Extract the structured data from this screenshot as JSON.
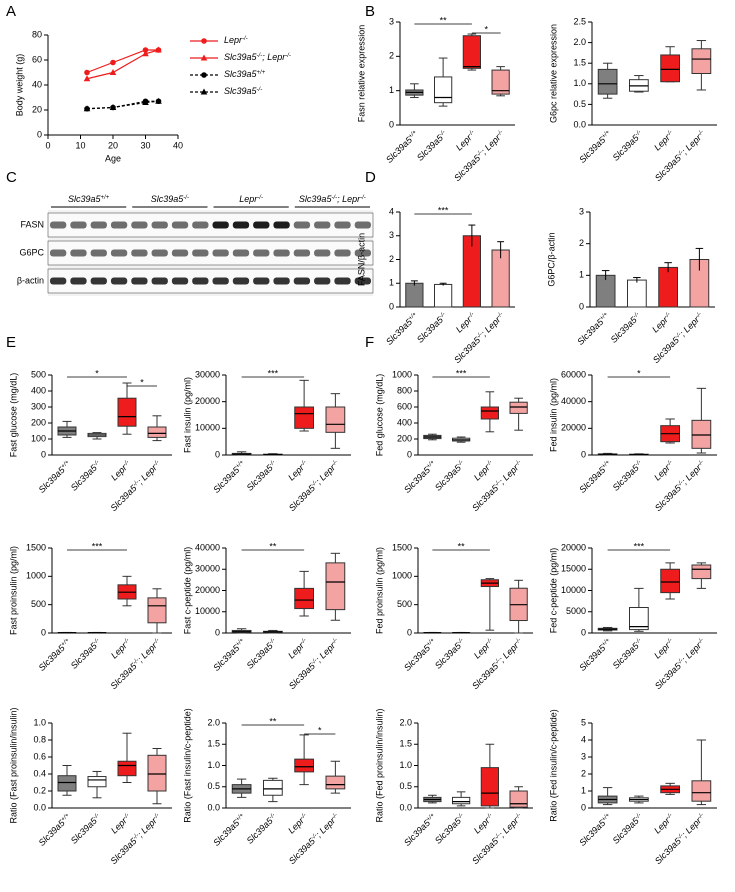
{
  "panel_labels": [
    "A",
    "B",
    "C",
    "D",
    "E",
    "F"
  ],
  "blot": {
    "groups": [
      "Slc39a5+/+",
      "Slc39a5-/-",
      "Lepr-/-",
      "Slc39a5-/-; Lepr-/-"
    ],
    "rows": [
      "FASN",
      "G6PC",
      "β-actin"
    ]
  },
  "chart_data": [
    {
      "type": "line",
      "xlabel": "Age",
      "ylabel": "Body weight (g)",
      "x": [
        12,
        20,
        30,
        34
      ],
      "xlim": [
        0,
        40
      ],
      "xticks": [
        0,
        10,
        20,
        30,
        40
      ],
      "ylim": [
        0,
        80
      ],
      "yticks": [
        0,
        20,
        40,
        60,
        80
      ],
      "legend": "right",
      "series": [
        {
          "name": "Lepr-/-",
          "color": "#ee1c1c",
          "marker": "circle",
          "dashed": false,
          "values": [
            50,
            58,
            68,
            68
          ]
        },
        {
          "name": "Slc39a5-/-; Lepr-/-",
          "color": "#ee1c1c",
          "marker": "triangle",
          "dashed": false,
          "values": [
            45,
            50,
            65,
            68
          ]
        },
        {
          "name": "Slc39a5+/+",
          "color": "#000000",
          "marker": "circle",
          "dashed": true,
          "values": [
            21,
            22,
            27,
            27
          ]
        },
        {
          "name": "Slc39a5-/-",
          "color": "#000000",
          "marker": "triangle",
          "dashed": true,
          "values": [
            21,
            22,
            26,
            27
          ]
        }
      ]
    },
    {
      "type": "box",
      "ylabel": "Fasn relative expression",
      "categories": [
        "Slc39a5+/+",
        "Slc39a5-/-",
        "Lepr-/-",
        "Slc39a5-/-; Lepr-/-"
      ],
      "colors": [
        "#7f7f7f",
        "#ffffff",
        "#ee1c1c",
        "#f4a3a3"
      ],
      "ylim": [
        0,
        3
      ],
      "yticks": [
        0,
        1,
        2,
        3
      ],
      "boxes": [
        {
          "min": 0.8,
          "q1": 0.87,
          "median": 0.95,
          "q3": 1.02,
          "max": 1.2
        },
        {
          "min": 0.55,
          "q1": 0.65,
          "median": 0.8,
          "q3": 1.4,
          "max": 1.95
        },
        {
          "min": 1.6,
          "q1": 1.65,
          "median": 1.7,
          "q3": 2.6,
          "max": 2.65
        },
        {
          "min": 0.85,
          "q1": 0.9,
          "median": 1.0,
          "q3": 1.6,
          "max": 1.7
        }
      ],
      "significance": [
        {
          "groups": [
            "Slc39a5+/+",
            "Lepr-/-"
          ],
          "label": "**"
        },
        {
          "groups": [
            "Lepr-/-",
            "Slc39a5-/-; Lepr-/-"
          ],
          "label": "*"
        }
      ]
    },
    {
      "type": "box",
      "ylabel": "G6pc relative expression",
      "categories": [
        "Slc39a5+/+",
        "Slc39a5-/-",
        "Lepr-/-",
        "Slc39a5-/-; Lepr-/-"
      ],
      "colors": [
        "#7f7f7f",
        "#ffffff",
        "#ee1c1c",
        "#f4a3a3"
      ],
      "ylim": [
        0,
        2.5
      ],
      "yticks": [
        {
          "value": 0,
          "label": "0.0"
        },
        0.5,
        {
          "value": 1,
          "label": "1.0"
        },
        1.5,
        {
          "value": 2,
          "label": "2.0"
        },
        2.5
      ],
      "boxes": [
        {
          "min": 0.65,
          "q1": 0.75,
          "median": 1.0,
          "q3": 1.35,
          "max": 1.5
        },
        {
          "min": 0.8,
          "q1": 0.82,
          "median": 0.95,
          "q3": 1.1,
          "max": 1.2
        },
        {
          "min": 1.05,
          "q1": 1.05,
          "median": 1.35,
          "q3": 1.7,
          "max": 1.9
        },
        {
          "min": 0.85,
          "q1": 1.25,
          "median": 1.6,
          "q3": 1.85,
          "max": 2.05
        }
      ]
    },
    {
      "type": "bar",
      "ylabel": "FASN/β-actin",
      "categories": [
        "Slc39a5+/+",
        "Slc39a5-/-",
        "Lepr-/-",
        "Slc39a5-/-; Lepr-/-"
      ],
      "colors": [
        "#7f7f7f",
        "#ffffff",
        "#ee1c1c",
        "#f4a3a3"
      ],
      "ylim": [
        0,
        4
      ],
      "yticks": [
        0,
        1,
        2,
        3,
        4
      ],
      "values": [
        1.0,
        0.95,
        3.0,
        2.4
      ],
      "errors": [
        0.1,
        0.05,
        0.45,
        0.35
      ],
      "significance": [
        {
          "groups": [
            "Slc39a5+/+",
            "Lepr-/-"
          ],
          "label": "***"
        }
      ]
    },
    {
      "type": "bar",
      "ylabel": "G6PC/β-actin",
      "categories": [
        "Slc39a5+/+",
        "Slc39a5-/-",
        "Lepr-/-",
        "Slc39a5-/-; Lepr-/-"
      ],
      "colors": [
        "#7f7f7f",
        "#ffffff",
        "#ee1c1c",
        "#f4a3a3"
      ],
      "ylim": [
        0,
        3
      ],
      "yticks": [
        0,
        1,
        2,
        3
      ],
      "values": [
        1.0,
        0.85,
        1.25,
        1.5
      ],
      "errors": [
        0.15,
        0.08,
        0.15,
        0.35
      ]
    },
    {
      "type": "box",
      "ylabel": "Fast glucose (mg/dL)",
      "categories": [
        "Slc39a5+/+",
        "Slc39a5-/-",
        "Lepr-/-",
        "Slc39a5-/-; Lepr-/-"
      ],
      "colors": [
        "#7f7f7f",
        "#ffffff",
        "#ee1c1c",
        "#f4a3a3"
      ],
      "ylim": [
        0,
        500
      ],
      "yticks": [
        0,
        100,
        200,
        300,
        400,
        500
      ],
      "boxes": [
        {
          "min": 110,
          "q1": 125,
          "median": 150,
          "q3": 175,
          "max": 210
        },
        {
          "min": 100,
          "q1": 115,
          "median": 125,
          "q3": 135,
          "max": 140
        },
        {
          "min": 130,
          "q1": 180,
          "median": 240,
          "q3": 355,
          "max": 450
        },
        {
          "min": 90,
          "q1": 110,
          "median": 135,
          "q3": 175,
          "max": 245
        }
      ],
      "significance": [
        {
          "groups": [
            "Slc39a5+/+",
            "Lepr-/-"
          ],
          "label": "*"
        },
        {
          "groups": [
            "Lepr-/-",
            "Slc39a5-/-; Lepr-/-"
          ],
          "label": "*"
        }
      ]
    },
    {
      "type": "box",
      "ylabel": "Fast insulin (pg/ml)",
      "categories": [
        "Slc39a5+/+",
        "Slc39a5-/-",
        "Lepr-/-",
        "Slc39a5-/-; Lepr-/-"
      ],
      "colors": [
        "#7f7f7f",
        "#ffffff",
        "#ee1c1c",
        "#f4a3a3"
      ],
      "ylim": [
        0,
        30000
      ],
      "yticks": [
        0,
        10000,
        20000,
        30000
      ],
      "boxes": [
        {
          "min": 0,
          "q1": 100,
          "median": 300,
          "q3": 600,
          "max": 1200
        },
        {
          "min": 0,
          "q1": 50,
          "median": 150,
          "q3": 300,
          "max": 500
        },
        {
          "min": 9000,
          "q1": 10000,
          "median": 15500,
          "q3": 18000,
          "max": 28000
        },
        {
          "min": 2500,
          "q1": 8500,
          "median": 11500,
          "q3": 18000,
          "max": 23000
        }
      ],
      "significance": [
        {
          "groups": [
            "Slc39a5+/+",
            "Lepr-/-"
          ],
          "label": "***"
        }
      ]
    },
    {
      "type": "box",
      "ylabel": "Fast proinsulin (pg/ml)",
      "categories": [
        "Slc39a5+/+",
        "Slc39a5-/-",
        "Lepr-/-",
        "Slc39a5-/-; Lepr-/-"
      ],
      "colors": [
        "#7f7f7f",
        "#ffffff",
        "#ee1c1c",
        "#f4a3a3"
      ],
      "ylim": [
        0,
        1500
      ],
      "yticks": [
        0,
        500,
        1000,
        1500
      ],
      "boxes": [
        {
          "min": 0,
          "q1": 2,
          "median": 5,
          "q3": 8,
          "max": 10
        },
        {
          "min": 0,
          "q1": 2,
          "median": 5,
          "q3": 8,
          "max": 10
        },
        {
          "min": 480,
          "q1": 600,
          "median": 720,
          "q3": 850,
          "max": 1000
        },
        {
          "min": 0,
          "q1": 180,
          "median": 480,
          "q3": 620,
          "max": 780
        }
      ],
      "significance": [
        {
          "groups": [
            "Slc39a5+/+",
            "Lepr-/-"
          ],
          "label": "***"
        }
      ]
    },
    {
      "type": "box",
      "ylabel": "Fast c-peptide (pg/ml)",
      "categories": [
        "Slc39a5+/+",
        "Slc39a5-/-",
        "Lepr-/-",
        "Slc39a5-/-; Lepr-/-"
      ],
      "colors": [
        "#7f7f7f",
        "#ffffff",
        "#ee1c1c",
        "#f4a3a3"
      ],
      "ylim": [
        0,
        40000
      ],
      "yticks": [
        0,
        10000,
        20000,
        30000,
        40000
      ],
      "boxes": [
        {
          "min": 0,
          "q1": 200,
          "median": 600,
          "q3": 1200,
          "max": 2000
        },
        {
          "min": 0,
          "q1": 200,
          "median": 500,
          "q3": 800,
          "max": 1200
        },
        {
          "min": 8000,
          "q1": 11500,
          "median": 15500,
          "q3": 21000,
          "max": 29000
        },
        {
          "min": 6000,
          "q1": 11000,
          "median": 24000,
          "q3": 33000,
          "max": 37500
        }
      ],
      "significance": [
        {
          "groups": [
            "Slc39a5+/+",
            "Lepr-/-"
          ],
          "label": "**"
        }
      ]
    },
    {
      "type": "box",
      "ylabel": "Ratio (Fast proinsulin/insulin)",
      "categories": [
        "Slc39a5+/+",
        "Slc39a5-/-",
        "Lepr-/-",
        "Slc39a5-/-; Lepr-/-"
      ],
      "colors": [
        "#7f7f7f",
        "#ffffff",
        "#ee1c1c",
        "#f4a3a3"
      ],
      "ylim": [
        0,
        1.0
      ],
      "yticks": [
        {
          "value": 0,
          "label": "0.0"
        },
        0.2,
        0.4,
        0.6,
        0.8,
        {
          "value": 1,
          "label": "1.0"
        }
      ],
      "boxes": [
        {
          "min": 0.15,
          "q1": 0.2,
          "median": 0.3,
          "q3": 0.38,
          "max": 0.5
        },
        {
          "min": 0.12,
          "q1": 0.25,
          "median": 0.33,
          "q3": 0.37,
          "max": 0.43
        },
        {
          "min": 0.3,
          "q1": 0.38,
          "median": 0.5,
          "q3": 0.55,
          "max": 0.88
        },
        {
          "min": 0.05,
          "q1": 0.2,
          "median": 0.4,
          "q3": 0.62,
          "max": 0.7
        }
      ]
    },
    {
      "type": "box",
      "ylabel": "Ratio (Fast insulin/c-peptide)",
      "categories": [
        "Slc39a5+/+",
        "Slc39a5-/-",
        "Lepr-/-",
        "Slc39a5-/-; Lepr-/-"
      ],
      "colors": [
        "#7f7f7f",
        "#ffffff",
        "#ee1c1c",
        "#f4a3a3"
      ],
      "ylim": [
        0,
        2.0
      ],
      "yticks": [
        {
          "value": 0,
          "label": "0.0"
        },
        0.5,
        {
          "value": 1,
          "label": "1.0"
        },
        1.5,
        {
          "value": 2,
          "label": "2.0"
        }
      ],
      "boxes": [
        {
          "min": 0.25,
          "q1": 0.35,
          "median": 0.45,
          "q3": 0.55,
          "max": 0.68
        },
        {
          "min": 0.15,
          "q1": 0.3,
          "median": 0.45,
          "q3": 0.65,
          "max": 0.7
        },
        {
          "min": 0.55,
          "q1": 0.85,
          "median": 0.97,
          "q3": 1.15,
          "max": 1.72
        },
        {
          "min": 0.35,
          "q1": 0.45,
          "median": 0.55,
          "q3": 0.75,
          "max": 1.1
        }
      ],
      "significance": [
        {
          "groups": [
            "Slc39a5+/+",
            "Lepr-/-"
          ],
          "label": "**"
        },
        {
          "groups": [
            "Lepr-/-",
            "Slc39a5-/-; Lepr-/-"
          ],
          "label": "*"
        }
      ]
    },
    {
      "type": "box",
      "ylabel": "Fed glucose (mg/dL)",
      "categories": [
        "Slc39a5+/+",
        "Slc39a5-/-",
        "Lepr-/-",
        "Slc39a5-/-; Lepr-/-"
      ],
      "colors": [
        "#7f7f7f",
        "#ffffff",
        "#ee1c1c",
        "#f4a3a3"
      ],
      "ylim": [
        0,
        1000
      ],
      "yticks": [
        0,
        200,
        400,
        600,
        800,
        1000
      ],
      "boxes": [
        {
          "min": 190,
          "q1": 205,
          "median": 225,
          "q3": 245,
          "max": 260
        },
        {
          "min": 160,
          "q1": 175,
          "median": 190,
          "q3": 210,
          "max": 225
        },
        {
          "min": 290,
          "q1": 450,
          "median": 550,
          "q3": 600,
          "max": 790
        },
        {
          "min": 310,
          "q1": 520,
          "median": 600,
          "q3": 660,
          "max": 710
        }
      ],
      "significance": [
        {
          "groups": [
            "Slc39a5+/+",
            "Lepr-/-"
          ],
          "label": "***"
        }
      ]
    },
    {
      "type": "box",
      "ylabel": "Fed insulin (pg/ml)",
      "categories": [
        "Slc39a5+/+",
        "Slc39a5-/-",
        "Lepr-/-",
        "Slc39a5-/-; Lepr-/-"
      ],
      "colors": [
        "#7f7f7f",
        "#ffffff",
        "#ee1c1c",
        "#f4a3a3"
      ],
      "ylim": [
        0,
        60000
      ],
      "yticks": [
        0,
        20000,
        40000,
        60000
      ],
      "boxes": [
        {
          "min": 0,
          "q1": 200,
          "median": 500,
          "q3": 800,
          "max": 1200
        },
        {
          "min": 0,
          "q1": 100,
          "median": 300,
          "q3": 600,
          "max": 900
        },
        {
          "min": 9000,
          "q1": 10000,
          "median": 16000,
          "q3": 22000,
          "max": 27000
        },
        {
          "min": 1500,
          "q1": 5000,
          "median": 15000,
          "q3": 26000,
          "max": 50000
        }
      ],
      "significance": [
        {
          "groups": [
            "Slc39a5+/+",
            "Lepr-/-"
          ],
          "label": "*"
        }
      ]
    },
    {
      "type": "box",
      "ylabel": "Fed proinsulin (pg/ml)",
      "categories": [
        "Slc39a5+/+",
        "Slc39a5-/-",
        "Lepr-/-",
        "Slc39a5-/-; Lepr-/-"
      ],
      "colors": [
        "#7f7f7f",
        "#ffffff",
        "#ee1c1c",
        "#f4a3a3"
      ],
      "ylim": [
        0,
        1500
      ],
      "yticks": [
        0,
        500,
        1000,
        1500
      ],
      "boxes": [
        {
          "min": 0,
          "q1": 2,
          "median": 5,
          "q3": 8,
          "max": 10
        },
        {
          "min": 0,
          "q1": 2,
          "median": 5,
          "q3": 8,
          "max": 10
        },
        {
          "min": 50,
          "q1": 820,
          "median": 880,
          "q3": 940,
          "max": 960
        },
        {
          "min": 0,
          "q1": 220,
          "median": 500,
          "q3": 790,
          "max": 930
        }
      ],
      "significance": [
        {
          "groups": [
            "Slc39a5+/+",
            "Lepr-/-"
          ],
          "label": "**"
        }
      ]
    },
    {
      "type": "box",
      "ylabel": "Fed c-peptide (pg/ml)",
      "categories": [
        "Slc39a5+/+",
        "Slc39a5-/-",
        "Lepr-/-",
        "Slc39a5-/-; Lepr-/-"
      ],
      "colors": [
        "#7f7f7f",
        "#ffffff",
        "#ee1c1c",
        "#f4a3a3"
      ],
      "ylim": [
        0,
        20000
      ],
      "yticks": [
        0,
        5000,
        10000,
        15000,
        20000
      ],
      "boxes": [
        {
          "min": 500,
          "q1": 700,
          "median": 900,
          "q3": 1100,
          "max": 1300
        },
        {
          "min": 400,
          "q1": 800,
          "median": 1500,
          "q3": 6000,
          "max": 10500
        },
        {
          "min": 8000,
          "q1": 9500,
          "median": 12000,
          "q3": 15000,
          "max": 16500
        },
        {
          "min": 10500,
          "q1": 12800,
          "median": 15000,
          "q3": 16000,
          "max": 16500
        }
      ],
      "significance": [
        {
          "groups": [
            "Slc39a5+/+",
            "Lepr-/-"
          ],
          "label": "***"
        }
      ]
    },
    {
      "type": "box",
      "ylabel": "Ratio (Fed proinsulin/insulin)",
      "categories": [
        "Slc39a5+/+",
        "Slc39a5-/-",
        "Lepr-/-",
        "Slc39a5-/-; Lepr-/-"
      ],
      "colors": [
        "#7f7f7f",
        "#ffffff",
        "#ee1c1c",
        "#f4a3a3"
      ],
      "ylim": [
        0,
        2.0
      ],
      "yticks": [
        {
          "value": 0,
          "label": "0.0"
        },
        0.5,
        {
          "value": 1,
          "label": "1.0"
        },
        1.5,
        {
          "value": 2,
          "label": "2.0"
        }
      ],
      "boxes": [
        {
          "min": 0.12,
          "q1": 0.15,
          "median": 0.2,
          "q3": 0.25,
          "max": 0.3
        },
        {
          "min": 0.05,
          "q1": 0.1,
          "median": 0.15,
          "q3": 0.25,
          "max": 0.38
        },
        {
          "min": 0,
          "q1": 0.05,
          "median": 0.35,
          "q3": 0.95,
          "max": 1.5
        },
        {
          "min": 0,
          "q1": 0.02,
          "median": 0.1,
          "q3": 0.4,
          "max": 0.5
        }
      ]
    },
    {
      "type": "box",
      "ylabel": "Ratio (Fed insulin/c-peptide)",
      "categories": [
        "Slc39a5+/+",
        "Slc39a5-/-",
        "Lepr-/-",
        "Slc39a5-/-; Lepr-/-"
      ],
      "colors": [
        "#7f7f7f",
        "#ffffff",
        "#ee1c1c",
        "#f4a3a3"
      ],
      "ylim": [
        0,
        5
      ],
      "yticks": [
        0,
        1,
        2,
        3,
        4,
        5
      ],
      "boxes": [
        {
          "min": 0.2,
          "q1": 0.3,
          "median": 0.5,
          "q3": 0.7,
          "max": 1.2
        },
        {
          "min": 0.3,
          "q1": 0.4,
          "median": 0.5,
          "q3": 0.6,
          "max": 0.7
        },
        {
          "min": 0.8,
          "q1": 0.9,
          "median": 1.1,
          "q3": 1.3,
          "max": 1.45
        },
        {
          "min": 0.2,
          "q1": 0.4,
          "median": 0.9,
          "q3": 1.6,
          "max": 4.0
        }
      ]
    }
  ]
}
